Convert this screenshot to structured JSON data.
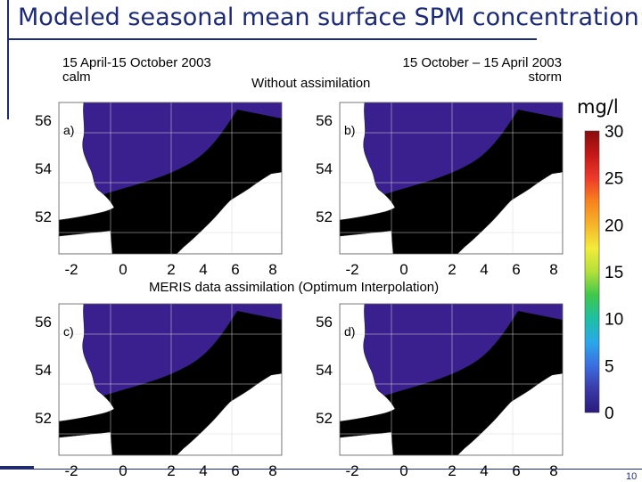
{
  "slide": {
    "title": "Modeled seasonal mean surface SPM concentration:",
    "page_number": "10"
  },
  "headers": {
    "left_period": "15 April-15 October 2003",
    "left_condition": "calm",
    "right_period": "15 October – 15 April 2003",
    "right_condition": "storm",
    "top_row": "Without assimilation",
    "bottom_row": "MERIS data assimilation (Optimum Interpolation)"
  },
  "colorbar": {
    "unit": "mg/l",
    "ticks": [
      "30",
      "25",
      "20",
      "15",
      "10",
      "5",
      "0"
    ],
    "colors": [
      "#8a0c0c",
      "#c41818",
      "#ee3a2a",
      "#f8821e",
      "#f6b42a",
      "#f2ec3a",
      "#b4e03a",
      "#3ec84a",
      "#1ebfa4",
      "#2aa8ea",
      "#3a6ee2",
      "#3a3aa8",
      "#2a1a7e"
    ]
  },
  "panels": [
    {
      "id": "a)",
      "label": "a)"
    },
    {
      "id": "b)",
      "label": "b)"
    },
    {
      "id": "c)",
      "label": "c)"
    },
    {
      "id": "d)",
      "label": "d)"
    }
  ],
  "axes": {
    "x_ticks": [
      "-2",
      "0",
      "2",
      "4",
      "6",
      "8"
    ],
    "y_ticks": [
      "56",
      "54",
      "52"
    ]
  },
  "colors": {
    "land": "#ffffff",
    "low": "#3a1f8e",
    "title": "#1c2a78"
  }
}
